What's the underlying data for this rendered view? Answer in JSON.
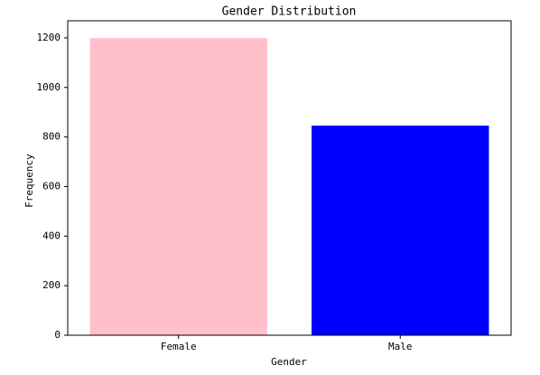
{
  "chart_data": {
    "type": "bar",
    "title": "Gender Distribution",
    "x_label": "Gender",
    "y_label": "Frequency",
    "categories": [
      "Female",
      "Male"
    ],
    "values": [
      1199,
      846
    ],
    "colors": [
      "#ffc0cb",
      "#0000ff"
    ],
    "ylim": [
      0,
      1269
    ],
    "yticks": [
      0,
      200,
      400,
      600,
      800,
      1000,
      1200
    ],
    "grid": false
  }
}
